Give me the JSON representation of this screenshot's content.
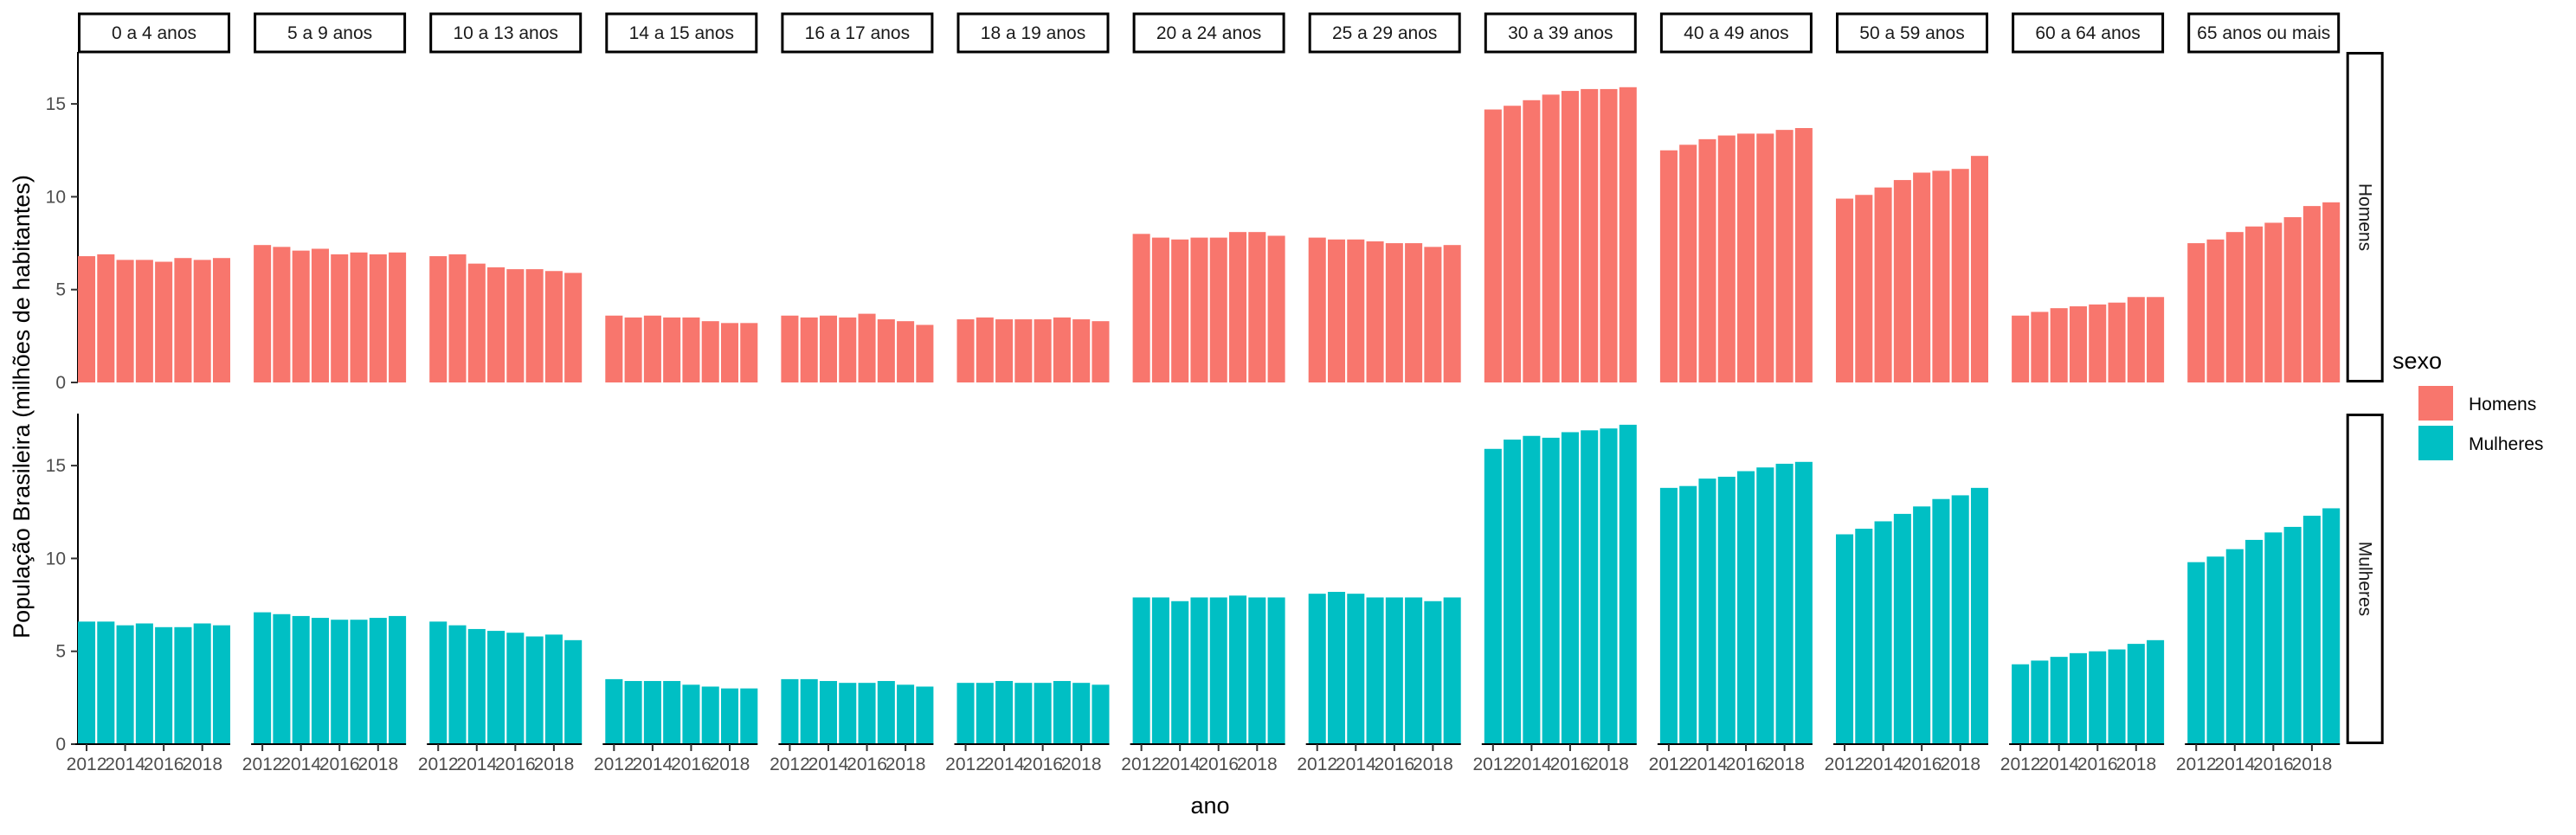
{
  "chart_data": {
    "type": "bar",
    "facet_columns": [
      "0 a 4 anos",
      "5 a 9 anos",
      "10 a 13 anos",
      "14 a 15 anos",
      "16 a 17 anos",
      "18 a 19 anos",
      "20 a 24 anos",
      "25 a 29 anos",
      "30 a 39 anos",
      "40 a 49 anos",
      "50 a 59 anos",
      "60 a 64 anos",
      "65 anos ou mais"
    ],
    "facet_rows": [
      "Homens",
      "Mulheres"
    ],
    "x": [
      2012,
      2013,
      2014,
      2015,
      2016,
      2017,
      2018,
      2019
    ],
    "x_tick_labels": [
      "2012",
      "2014",
      "2016",
      "2018"
    ],
    "y_ticks": [
      0,
      5,
      10,
      15
    ],
    "ylim": [
      0,
      17.8
    ],
    "xlabel": "ano",
    "ylabel": "População Brasileira (milhões de habitantes)",
    "legend": {
      "title": "sexo",
      "position": "right",
      "entries": [
        {
          "label": "Homens",
          "color": "#F8766D"
        },
        {
          "label": "Mulheres",
          "color": "#00BFC4"
        }
      ]
    },
    "colors": {
      "Homens": "#F8766D",
      "Mulheres": "#00BFC4"
    },
    "series": [
      {
        "sexo": "Homens",
        "values": [
          [
            6.8,
            6.9,
            6.6,
            6.6,
            6.5,
            6.7,
            6.6,
            6.7
          ],
          [
            7.4,
            7.3,
            7.1,
            7.2,
            6.9,
            7.0,
            6.9,
            7.0
          ],
          [
            6.8,
            6.9,
            6.4,
            6.2,
            6.1,
            6.1,
            6.0,
            5.9
          ],
          [
            3.6,
            3.5,
            3.6,
            3.5,
            3.5,
            3.3,
            3.2,
            3.2
          ],
          [
            3.6,
            3.5,
            3.6,
            3.5,
            3.7,
            3.4,
            3.3,
            3.1
          ],
          [
            3.4,
            3.5,
            3.4,
            3.4,
            3.4,
            3.5,
            3.4,
            3.3
          ],
          [
            8.0,
            7.8,
            7.7,
            7.8,
            7.8,
            8.1,
            8.1,
            7.9
          ],
          [
            7.8,
            7.7,
            7.7,
            7.6,
            7.5,
            7.5,
            7.3,
            7.4
          ],
          [
            14.7,
            14.9,
            15.2,
            15.5,
            15.7,
            15.8,
            15.8,
            15.9
          ],
          [
            12.5,
            12.8,
            13.1,
            13.3,
            13.4,
            13.4,
            13.6,
            13.7
          ],
          [
            9.9,
            10.1,
            10.5,
            10.9,
            11.3,
            11.4,
            11.5,
            12.2
          ],
          [
            3.6,
            3.8,
            4.0,
            4.1,
            4.2,
            4.3,
            4.6,
            4.6
          ],
          [
            7.5,
            7.7,
            8.1,
            8.4,
            8.6,
            8.9,
            9.5,
            9.7
          ]
        ]
      },
      {
        "sexo": "Mulheres",
        "values": [
          [
            6.6,
            6.6,
            6.4,
            6.5,
            6.3,
            6.3,
            6.5,
            6.4
          ],
          [
            7.1,
            7.0,
            6.9,
            6.8,
            6.7,
            6.7,
            6.8,
            6.9
          ],
          [
            6.6,
            6.4,
            6.2,
            6.1,
            6.0,
            5.8,
            5.9,
            5.6
          ],
          [
            3.5,
            3.4,
            3.4,
            3.4,
            3.2,
            3.1,
            3.0,
            3.0
          ],
          [
            3.5,
            3.5,
            3.4,
            3.3,
            3.3,
            3.4,
            3.2,
            3.1
          ],
          [
            3.3,
            3.3,
            3.4,
            3.3,
            3.3,
            3.4,
            3.3,
            3.2
          ],
          [
            7.9,
            7.9,
            7.7,
            7.9,
            7.9,
            8.0,
            7.9,
            7.9
          ],
          [
            8.1,
            8.2,
            8.1,
            7.9,
            7.9,
            7.9,
            7.7,
            7.9
          ],
          [
            15.9,
            16.4,
            16.6,
            16.5,
            16.8,
            16.9,
            17.0,
            17.2
          ],
          [
            13.8,
            13.9,
            14.3,
            14.4,
            14.7,
            14.9,
            15.1,
            15.2
          ],
          [
            11.3,
            11.6,
            12.0,
            12.4,
            12.8,
            13.2,
            13.4,
            13.8
          ],
          [
            4.3,
            4.5,
            4.7,
            4.9,
            5.0,
            5.1,
            5.4,
            5.6
          ],
          [
            9.8,
            10.1,
            10.5,
            11.0,
            11.4,
            11.7,
            12.3,
            12.7
          ]
        ]
      }
    ]
  }
}
